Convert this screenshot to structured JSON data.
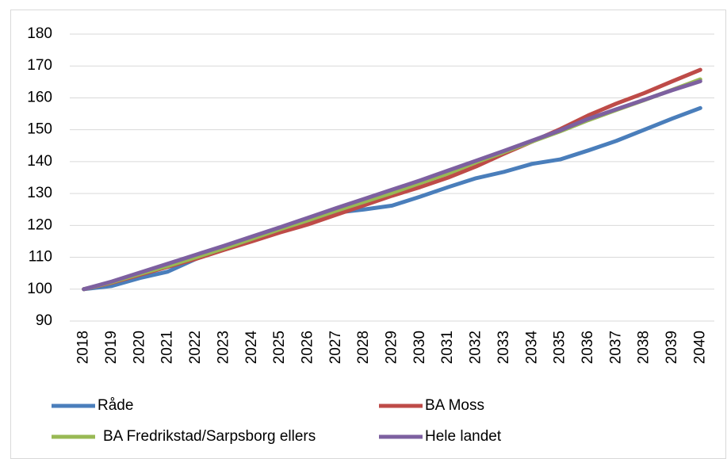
{
  "chart_data": {
    "type": "line",
    "categories": [
      "2018",
      "2019",
      "2020",
      "2021",
      "2022",
      "2023",
      "2024",
      "2025",
      "2026",
      "2027",
      "2028",
      "2029",
      "2030",
      "2031",
      "2032",
      "2033",
      "2034",
      "2035",
      "2036",
      "2037",
      "2038",
      "2039",
      "2040"
    ],
    "series": [
      {
        "name": "Råde",
        "color": "#4a7ebb",
        "values": [
          100,
          101,
          103.5,
          105.5,
          109.5,
          112.5,
          115.5,
          118.5,
          121,
          124,
          125,
          126.2,
          129,
          132,
          134.8,
          136.8,
          139.3,
          140.7,
          143.5,
          146.5,
          150,
          153.5,
          156.8
        ]
      },
      {
        "name": "BA Moss",
        "color": "#be4b48",
        "values": [
          100,
          102,
          104.5,
          107,
          109.5,
          112.3,
          115,
          117.8,
          120.3,
          123.3,
          126.3,
          129.3,
          132,
          135,
          138.5,
          142.5,
          146.3,
          150.2,
          154.5,
          158.2,
          161.5,
          165.2,
          168.8
        ]
      },
      {
        "name": "BA Fredrikstad/Sarpsborg ellers",
        "color": "#98b954",
        "values": [
          100,
          102.2,
          104.8,
          107.3,
          110,
          112.8,
          115.8,
          118.8,
          121.6,
          124.6,
          127.4,
          130.2,
          133.3,
          136.3,
          139.8,
          143,
          146.3,
          149.5,
          153,
          156.2,
          159.3,
          162.5,
          165.8
        ]
      },
      {
        "name": "Hele landet",
        "color": "#7d60a0",
        "values": [
          100,
          102.4,
          105.2,
          108,
          110.8,
          113.6,
          116.5,
          119.4,
          122.4,
          125.4,
          128.3,
          131.2,
          134.1,
          137.2,
          140.3,
          143.4,
          146.6,
          149.8,
          153.4,
          156.4,
          159.4,
          162.4,
          165.2
        ]
      }
    ],
    "ylim": [
      90,
      180
    ],
    "yticks": [
      90,
      100,
      110,
      120,
      130,
      140,
      150,
      160,
      170,
      180
    ],
    "grid": true,
    "legend": "bottom"
  }
}
